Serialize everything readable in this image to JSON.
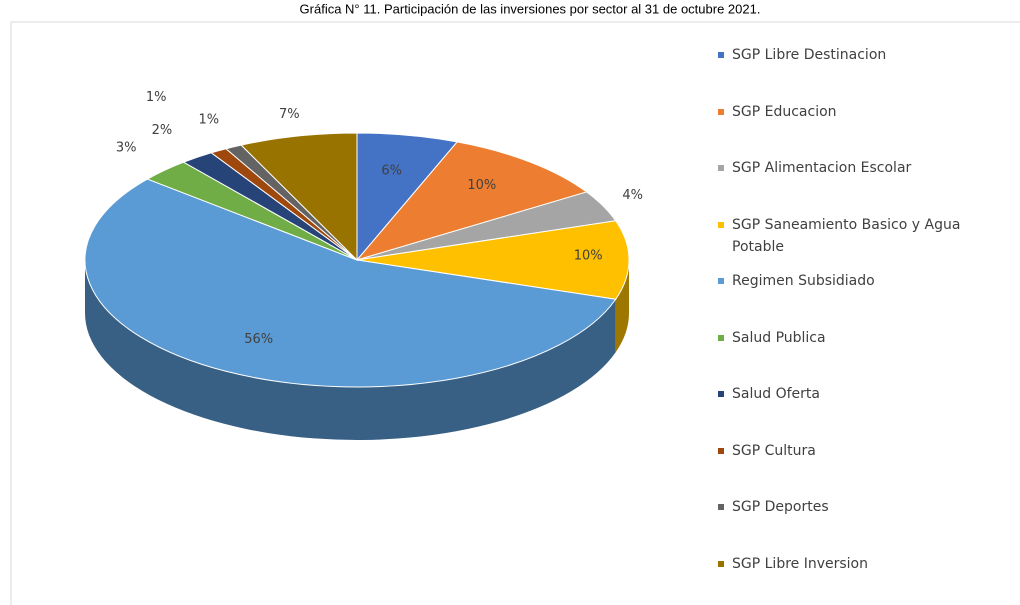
{
  "chart_data": {
    "type": "pie3d",
    "title": "Gráfica N° 11. Participación de las inversiones por sector al 31 de octubre 2021.",
    "categories": [
      "SGP Libre Destinacion",
      "SGP Educacion",
      "SGP Alimentacion Escolar",
      "SGP Saneamiento Basico y Agua Potable",
      "Regimen Subsidiado",
      "Salud Publica",
      "Salud Oferta",
      "SGP Cultura",
      "SGP Deportes",
      "SGP Libre Inversion"
    ],
    "values": [
      6,
      10,
      4,
      10,
      56,
      3,
      2,
      1,
      1,
      7
    ],
    "value_labels": [
      "6%",
      "10%",
      "4%",
      "10%",
      "56%",
      "3%",
      "2%",
      "1%",
      "1%",
      "7%"
    ],
    "colors": [
      "#4472c4",
      "#ed7d31",
      "#a5a5a5",
      "#ffc000",
      "#5b9bd5",
      "#70ad47",
      "#264478",
      "#9e480e",
      "#636363",
      "#997300"
    ],
    "legend": "right"
  }
}
